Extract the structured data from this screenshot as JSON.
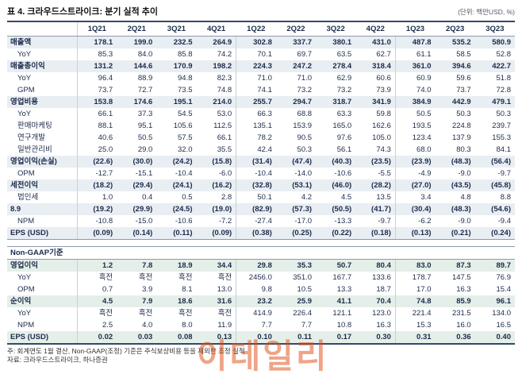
{
  "header": {
    "title": "표 4. 크라우드스트라이크: 분기 실적 추이",
    "unit": "(단위: 백만USD, %)"
  },
  "table": {
    "columns": [
      "1Q21",
      "2Q21",
      "3Q21",
      "4Q21",
      "1Q22",
      "2Q22",
      "3Q22",
      "4Q22",
      "1Q23",
      "2Q23",
      "3Q23"
    ],
    "year_break_indices": [
      4,
      8
    ],
    "rows": [
      {
        "label": "매출액",
        "emphasis": true,
        "group": "gaap",
        "values": [
          "178.1",
          "199.0",
          "232.5",
          "264.9",
          "302.8",
          "337.7",
          "380.1",
          "431.0",
          "487.8",
          "535.2",
          "580.9"
        ]
      },
      {
        "label": "YoY",
        "emphasis": false,
        "group": "gaap",
        "values": [
          "85.3",
          "84.0",
          "85.8",
          "74.2",
          "70.1",
          "69.7",
          "63.5",
          "62.7",
          "61.1",
          "58.5",
          "52.8"
        ]
      },
      {
        "label": "매출총이익",
        "emphasis": true,
        "group": "gaap",
        "values": [
          "131.2",
          "144.6",
          "170.9",
          "198.2",
          "224.3",
          "247.2",
          "278.4",
          "318.4",
          "361.0",
          "394.6",
          "422.7"
        ]
      },
      {
        "label": "YoY",
        "emphasis": false,
        "group": "gaap",
        "values": [
          "96.4",
          "88.9",
          "94.8",
          "82.3",
          "71.0",
          "71.0",
          "62.9",
          "60.6",
          "60.9",
          "59.6",
          "51.8"
        ]
      },
      {
        "label": "GPM",
        "emphasis": false,
        "group": "gaap",
        "values": [
          "73.7",
          "72.7",
          "73.5",
          "74.8",
          "74.1",
          "73.2",
          "73.2",
          "73.9",
          "74.0",
          "73.7",
          "72.8"
        ]
      },
      {
        "label": "영업비용",
        "emphasis": true,
        "group": "gaap",
        "values": [
          "153.8",
          "174.6",
          "195.1",
          "214.0",
          "255.7",
          "294.7",
          "318.7",
          "341.9",
          "384.9",
          "442.9",
          "479.1"
        ]
      },
      {
        "label": "YoY",
        "emphasis": false,
        "group": "gaap",
        "values": [
          "66.1",
          "37.3",
          "54.5",
          "53.0",
          "66.3",
          "68.8",
          "63.3",
          "59.8",
          "50.5",
          "50.3",
          "50.3"
        ]
      },
      {
        "label": "판매마케팅",
        "emphasis": false,
        "group": "gaap",
        "values": [
          "88.1",
          "95.1",
          "105.6",
          "112.5",
          "135.1",
          "153.9",
          "165.0",
          "162.6",
          "193.5",
          "224.8",
          "239.7"
        ]
      },
      {
        "label": "연구개발",
        "emphasis": false,
        "group": "gaap",
        "values": [
          "40.6",
          "50.5",
          "57.5",
          "66.1",
          "78.2",
          "90.5",
          "97.6",
          "105.0",
          "123.4",
          "137.9",
          "155.3"
        ]
      },
      {
        "label": "일반관리비",
        "emphasis": false,
        "group": "gaap",
        "values": [
          "25.0",
          "29.0",
          "32.0",
          "35.5",
          "42.4",
          "50.3",
          "56.1",
          "74.3",
          "68.0",
          "80.3",
          "84.1"
        ]
      },
      {
        "label": "영업이익(손실)",
        "emphasis": true,
        "group": "gaap",
        "values": [
          "(22.6)",
          "(30.0)",
          "(24.2)",
          "(15.8)",
          "(31.4)",
          "(47.4)",
          "(40.3)",
          "(23.5)",
          "(23.9)",
          "(48.3)",
          "(56.4)"
        ]
      },
      {
        "label": "OPM",
        "emphasis": false,
        "group": "gaap",
        "values": [
          "-12.7",
          "-15.1",
          "-10.4",
          "-6.0",
          "-10.4",
          "-14.0",
          "-10.6",
          "-5.5",
          "-4.9",
          "-9.0",
          "-9.7"
        ]
      },
      {
        "label": "세전이익",
        "emphasis": true,
        "group": "gaap",
        "values": [
          "(18.2)",
          "(29.4)",
          "(24.1)",
          "(16.2)",
          "(32.8)",
          "(53.1)",
          "(46.0)",
          "(28.2)",
          "(27.0)",
          "(43.5)",
          "(45.8)"
        ]
      },
      {
        "label": "법인세",
        "emphasis": false,
        "group": "gaap",
        "values": [
          "1.0",
          "0.4",
          "0.5",
          "2.8",
          "50.1",
          "4.2",
          "4.5",
          "13.5",
          "3.4",
          "4.8",
          "8.8"
        ]
      },
      {
        "label": "8.9",
        "emphasis": true,
        "group": "gaap",
        "values": [
          "(19.2)",
          "(29.9)",
          "(24.5)",
          "(19.0)",
          "(82.9)",
          "(57.3)",
          "(50.5)",
          "(41.7)",
          "(30.4)",
          "(48.3)",
          "(54.6)"
        ]
      },
      {
        "label": "NPM",
        "emphasis": false,
        "group": "gaap",
        "values": [
          "-10.8",
          "-15.0",
          "-10.6",
          "-7.2",
          "-27.4",
          "-17.0",
          "-13.3",
          "-9.7",
          "-6.2",
          "-9.0",
          "-9.4"
        ]
      },
      {
        "label": "EPS (USD)",
        "emphasis": true,
        "group": "gaap",
        "lastOfGroup": true,
        "values": [
          "(0.09)",
          "(0.14)",
          "(0.11)",
          "(0.09)",
          "(0.38)",
          "(0.25)",
          "(0.22)",
          "(0.18)",
          "(0.13)",
          "(0.21)",
          "(0.24)"
        ]
      },
      {
        "type": "spacer"
      },
      {
        "type": "section",
        "label": "Non-GAAP기준"
      },
      {
        "label": "영업이익",
        "emphasis": true,
        "group": "nongaap",
        "values": [
          "1.2",
          "7.8",
          "18.9",
          "34.4",
          "29.8",
          "35.3",
          "50.7",
          "80.4",
          "83.0",
          "87.3",
          "89.7"
        ]
      },
      {
        "label": "YoY",
        "emphasis": false,
        "group": "nongaap",
        "values": [
          "흑전",
          "흑전",
          "흑전",
          "흑전",
          "2456.0",
          "351.0",
          "167.7",
          "133.6",
          "178.7",
          "147.5",
          "76.9"
        ]
      },
      {
        "label": "OPM",
        "emphasis": false,
        "group": "nongaap",
        "values": [
          "0.7",
          "3.9",
          "8.1",
          "13.0",
          "9.8",
          "10.5",
          "13.3",
          "18.7",
          "17.0",
          "16.3",
          "15.4"
        ]
      },
      {
        "label": "순이익",
        "emphasis": true,
        "group": "nongaap",
        "values": [
          "4.5",
          "7.9",
          "18.6",
          "31.6",
          "23.2",
          "25.9",
          "41.1",
          "70.4",
          "74.8",
          "85.9",
          "96.1"
        ]
      },
      {
        "label": "YoY",
        "emphasis": false,
        "group": "nongaap",
        "values": [
          "흑전",
          "흑전",
          "흑전",
          "흑전",
          "414.9",
          "226.4",
          "121.1",
          "123.0",
          "221.4",
          "231.5",
          "134.0"
        ]
      },
      {
        "label": "NPM",
        "emphasis": false,
        "group": "nongaap",
        "values": [
          "2.5",
          "4.0",
          "8.0",
          "11.9",
          "7.7",
          "7.7",
          "10.8",
          "16.3",
          "15.3",
          "16.0",
          "16.5"
        ]
      },
      {
        "label": "EPS (USD)",
        "emphasis": true,
        "group": "nongaap",
        "values": [
          "0.02",
          "0.03",
          "0.08",
          "0.13",
          "0.10",
          "0.11",
          "0.17",
          "0.30",
          "0.31",
          "0.36",
          "0.40"
        ]
      }
    ]
  },
  "footnotes": [
    "주: 회계연도 1월 결산, Non-GAAP(조정) 기준은 주식보상비용 등을 제외한 조정 실적",
    "자료: 크라우드스트라이크, 하나증권"
  ],
  "watermark": {
    "text": "이데일리",
    "color": "#e04b12"
  }
}
